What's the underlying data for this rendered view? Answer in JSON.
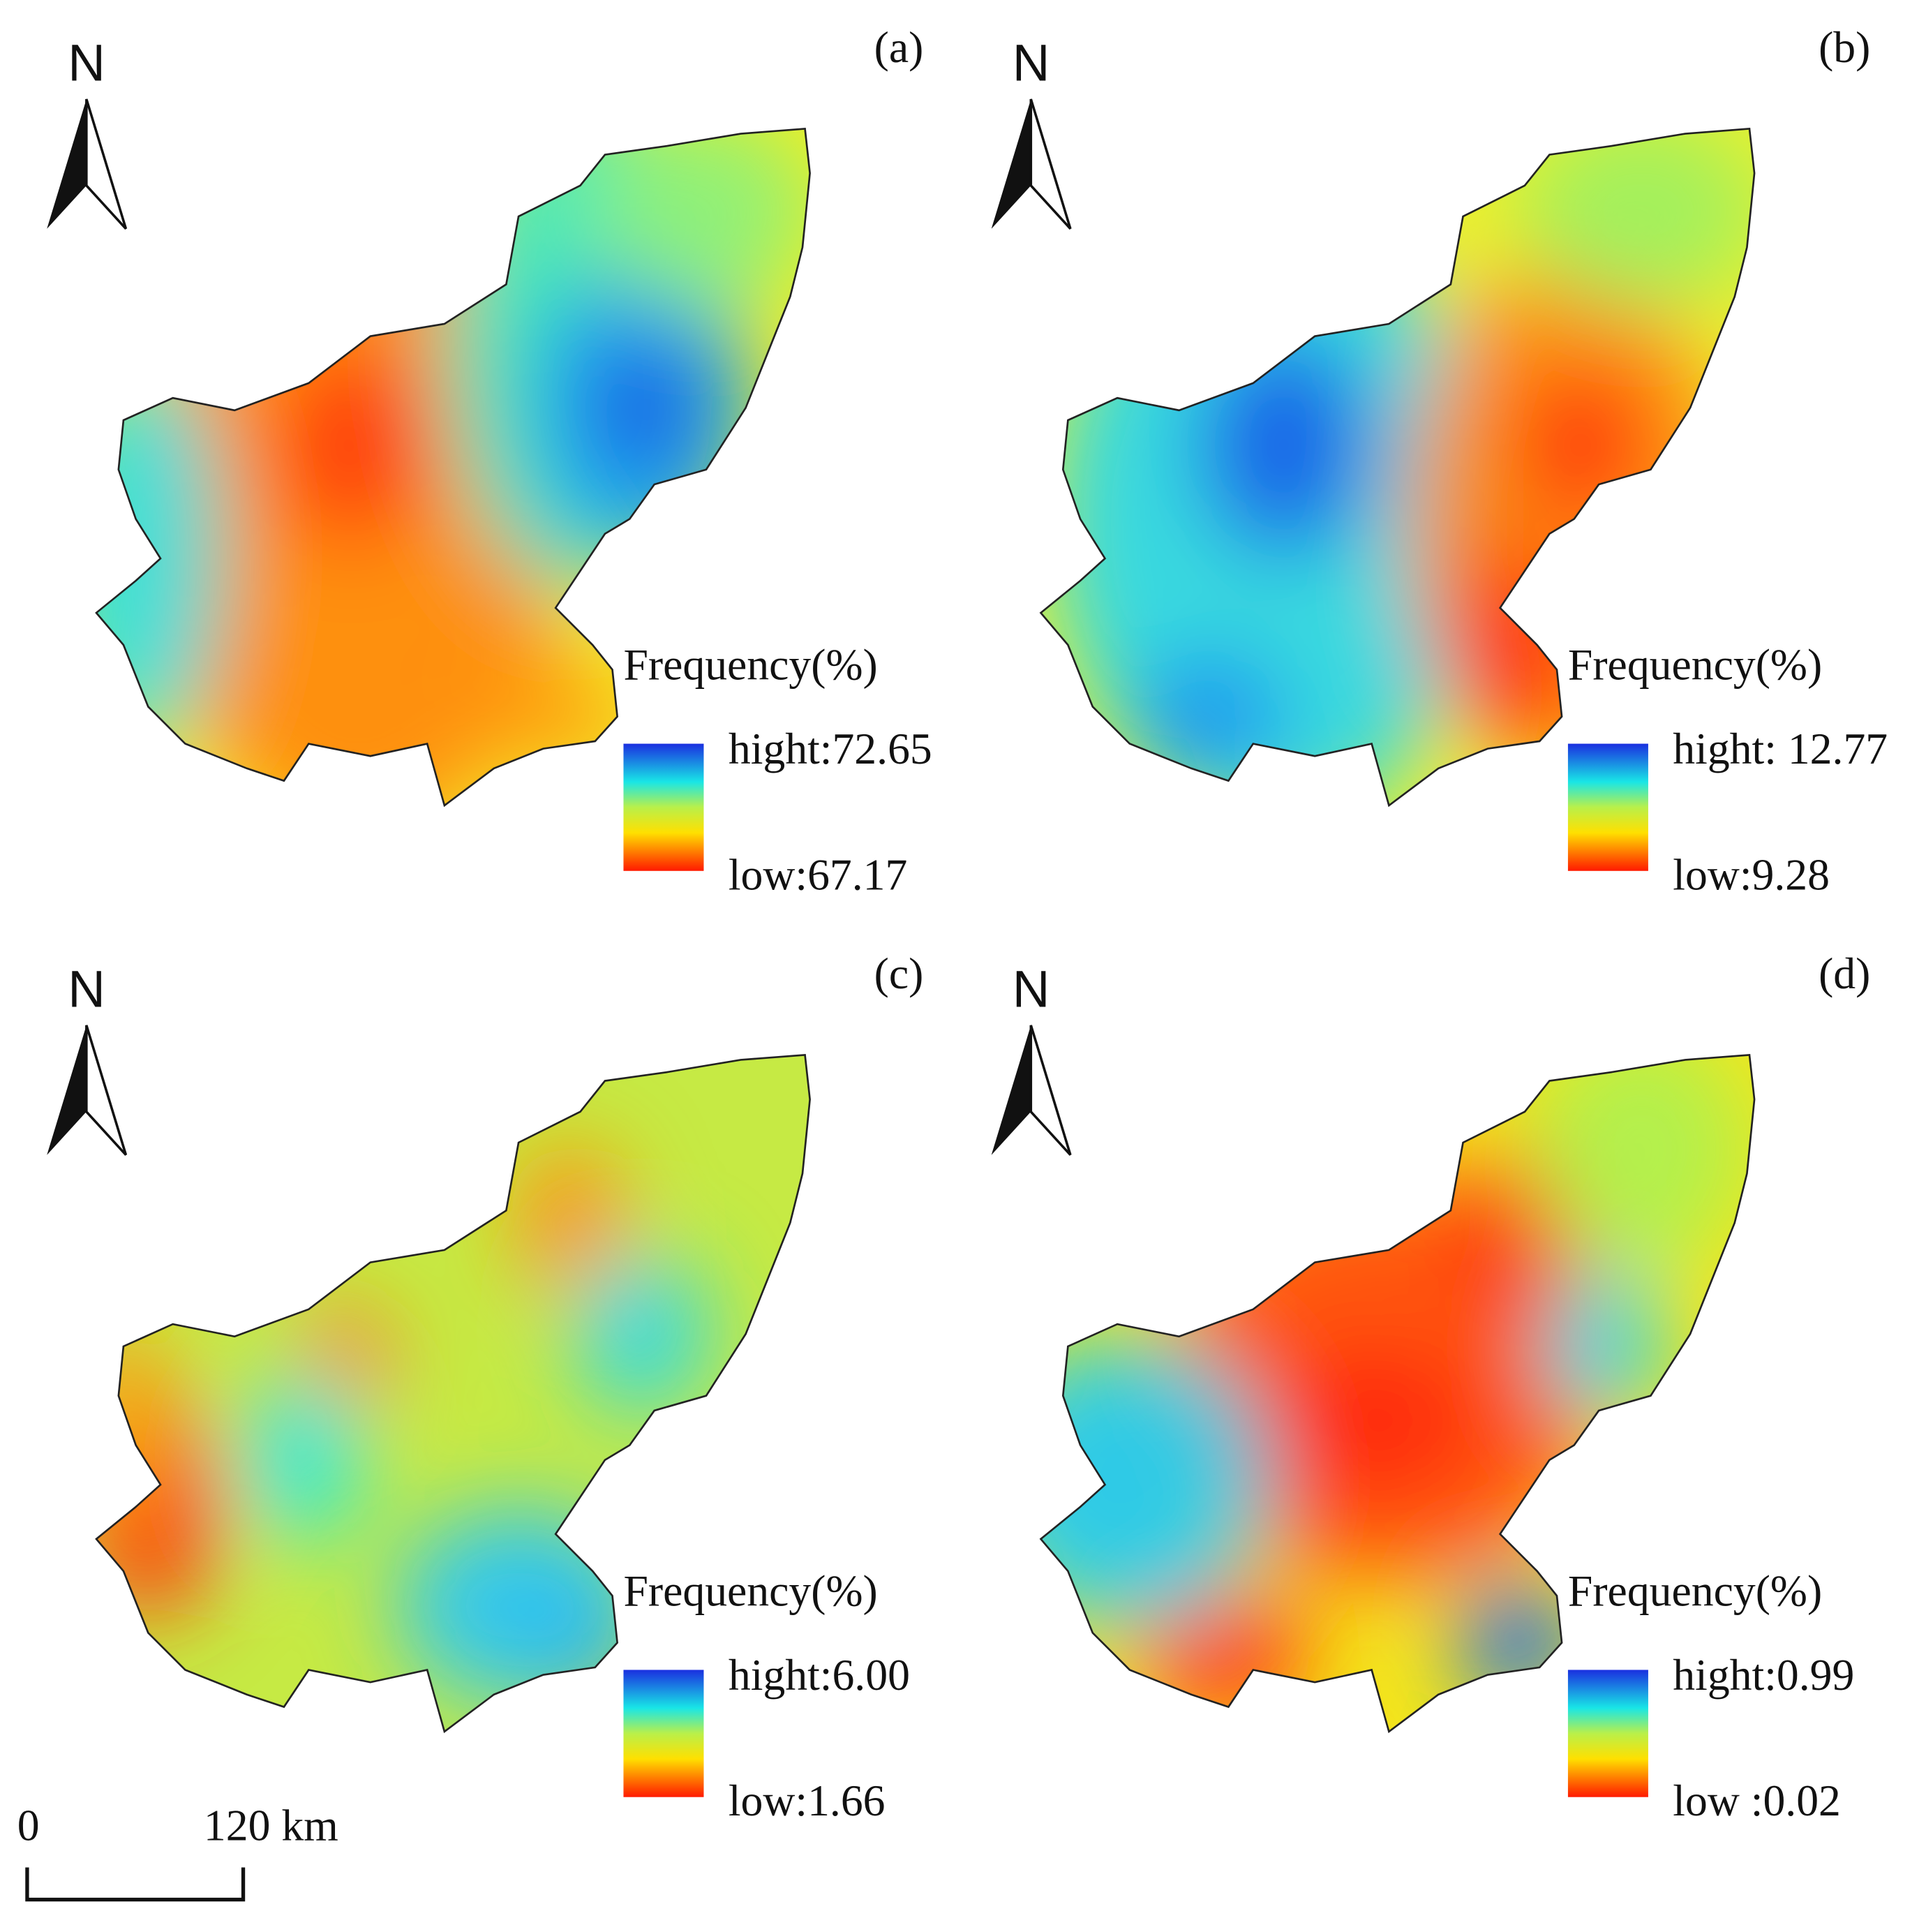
{
  "panels": [
    {
      "label": "(a)",
      "north": "N",
      "legend_title": "Frequency(%)",
      "high": "hight:72.65",
      "low": "low:67.17"
    },
    {
      "label": "(b)",
      "north": "N",
      "legend_title": "Frequency(%)",
      "high": "hight: 12.77",
      "low": "low:9.28"
    },
    {
      "label": "(c)",
      "north": "N",
      "legend_title": "Frequency(%)",
      "high": "hight:6.00",
      "low": "low:1.66"
    },
    {
      "label": "(d)",
      "north": "N",
      "legend_title": "Frequency(%)",
      "high": "hight:0.99",
      "low": "low :0.02"
    }
  ],
  "scale_bar": {
    "start": "0",
    "end": "120 km"
  }
}
